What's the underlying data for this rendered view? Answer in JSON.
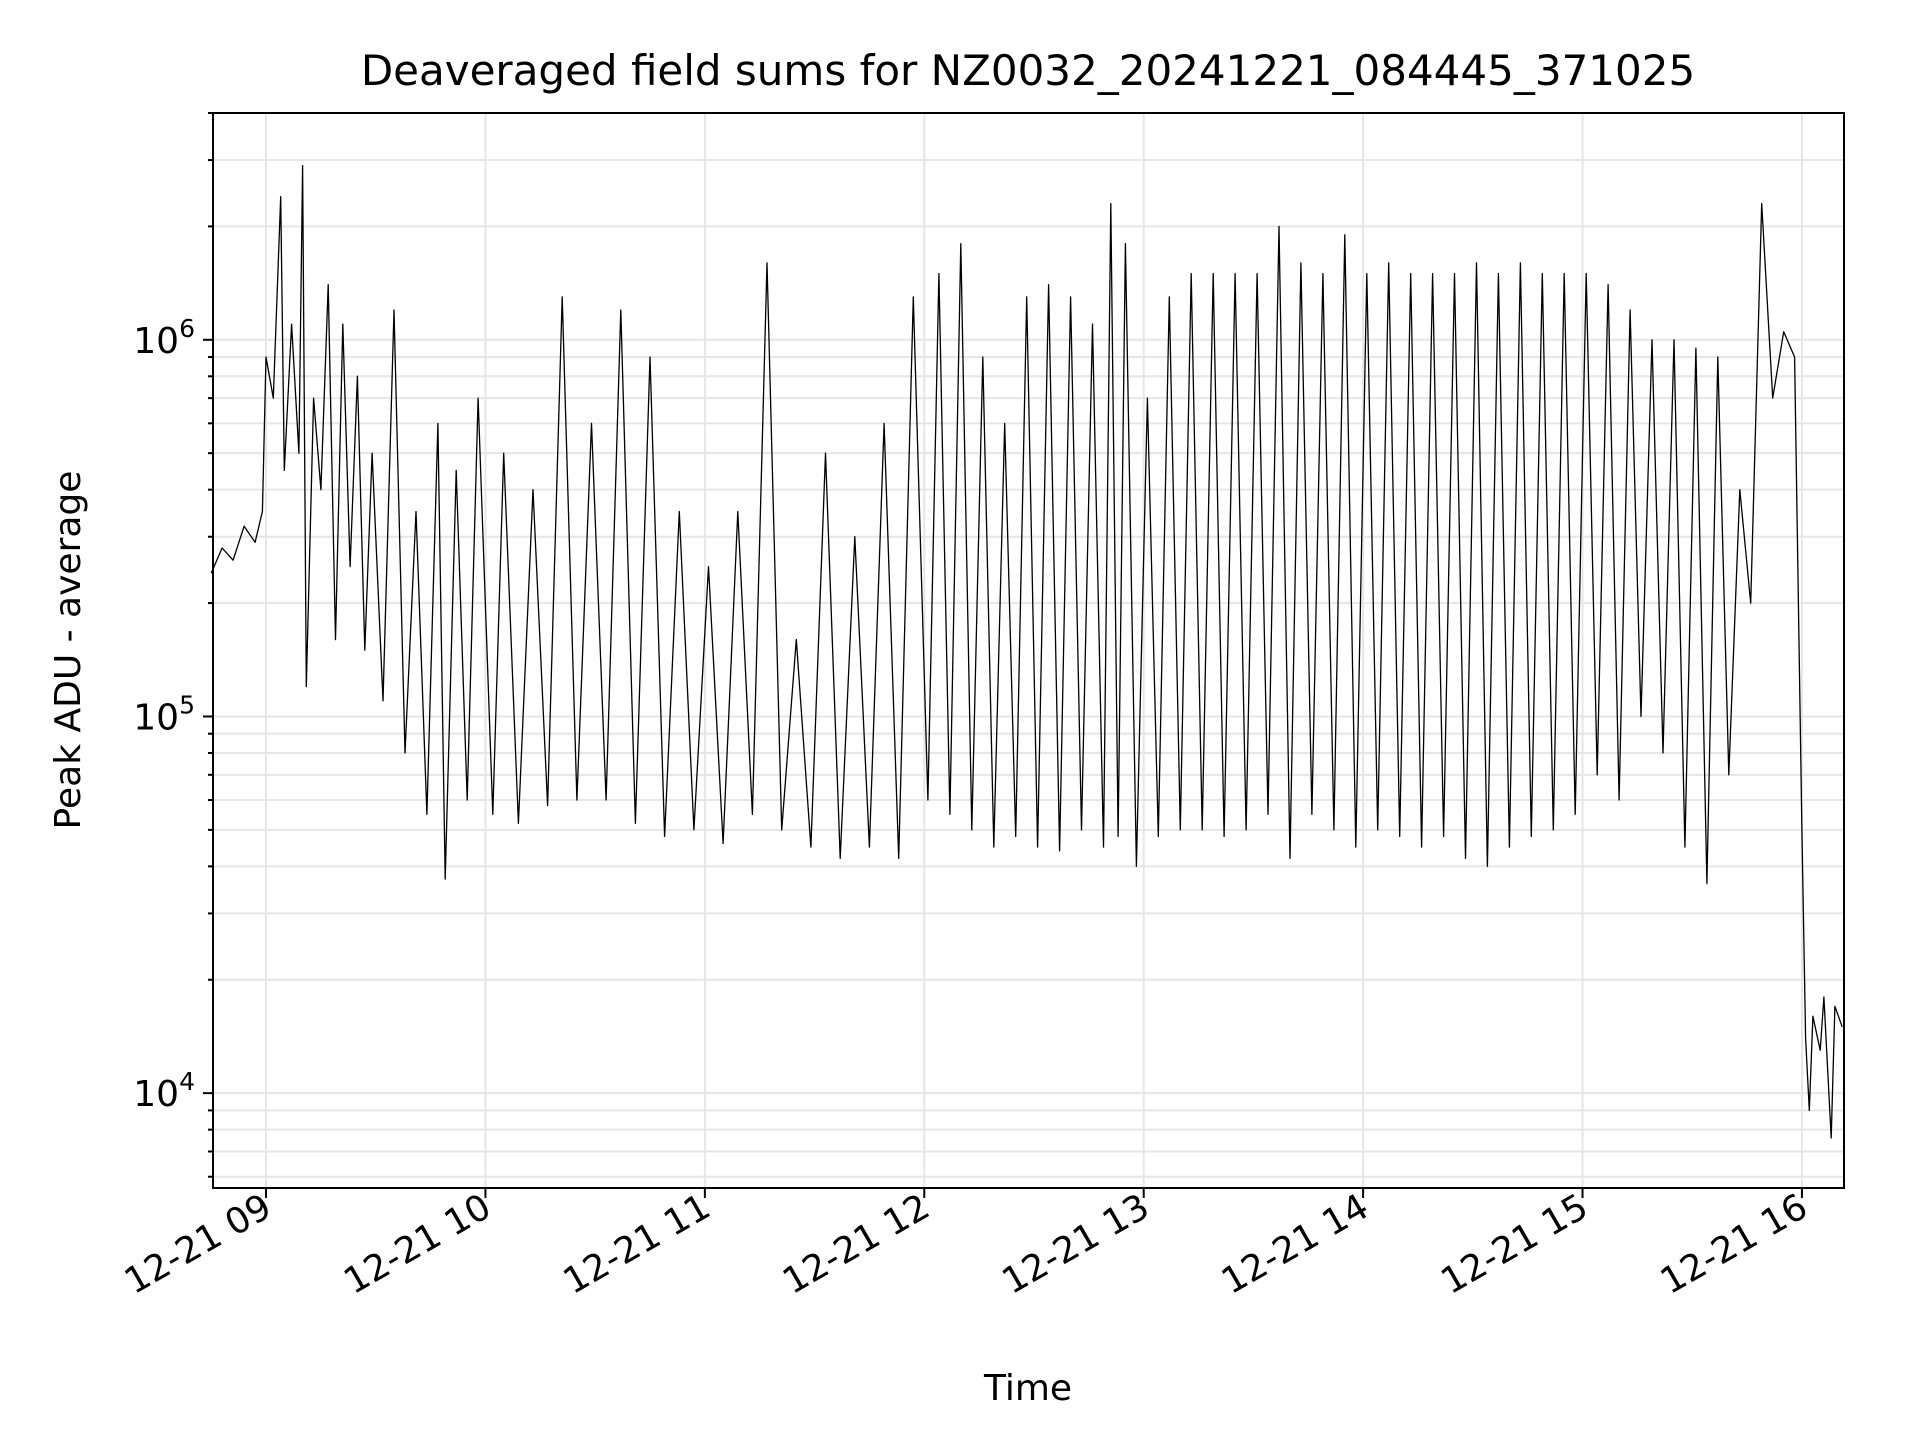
{
  "chart_data": {
    "type": "line",
    "title": "Deaveraged field sums for NZ0032_20241221_084445_371025",
    "xlabel": "Time",
    "ylabel": "Peak ADU - average",
    "yscale": "log",
    "ylim": [
      5600,
      4000000
    ],
    "xlim": [
      "12-21 08:45:30",
      "12-21 16:11:30"
    ],
    "x_tick_labels": [
      "12-21 09",
      "12-21 10",
      "12-21 11",
      "12-21 12",
      "12-21 13",
      "12-21 14",
      "12-21 15",
      "12-21 16"
    ],
    "y_tick_labels": [
      {
        "base": "10",
        "exp": "4"
      },
      {
        "base": "10",
        "exp": "5"
      },
      {
        "base": "10",
        "exp": "6"
      }
    ],
    "grid": true,
    "legend": "none",
    "series_color": "#000000",
    "series": [
      {
        "points": [
          [
            "12-21 08:45",
            240000
          ],
          [
            "12-21 08:48",
            280000
          ],
          [
            "12-21 08:51",
            260000
          ],
          [
            "12-21 08:54",
            320000
          ],
          [
            "12-21 08:57",
            290000
          ],
          [
            "12-21 08:59",
            350000
          ],
          [
            "12-21 09:00",
            900000
          ],
          [
            "12-21 09:02",
            700000
          ],
          [
            "12-21 09:04",
            2400000
          ],
          [
            "12-21 09:05",
            450000
          ],
          [
            "12-21 09:07",
            1100000
          ],
          [
            "12-21 09:09",
            500000
          ],
          [
            "12-21 09:10",
            2900000
          ],
          [
            "12-21 09:11",
            120000
          ],
          [
            "12-21 09:13",
            700000
          ],
          [
            "12-21 09:15",
            400000
          ],
          [
            "12-21 09:17",
            1400000
          ],
          [
            "12-21 09:19",
            160000
          ],
          [
            "12-21 09:21",
            1100000
          ],
          [
            "12-21 09:23",
            250000
          ],
          [
            "12-21 09:25",
            800000
          ],
          [
            "12-21 09:27",
            150000
          ],
          [
            "12-21 09:29",
            500000
          ],
          [
            "12-21 09:32",
            110000
          ],
          [
            "12-21 09:35",
            1200000
          ],
          [
            "12-21 09:38",
            80000
          ],
          [
            "12-21 09:41",
            350000
          ],
          [
            "12-21 09:44",
            55000
          ],
          [
            "12-21 09:47",
            600000
          ],
          [
            "12-21 09:49",
            37000
          ],
          [
            "12-21 09:52",
            450000
          ],
          [
            "12-21 09:55",
            60000
          ],
          [
            "12-21 09:58",
            700000
          ],
          [
            "12-21 10:02",
            55000
          ],
          [
            "12-21 10:05",
            500000
          ],
          [
            "12-21 10:09",
            52000
          ],
          [
            "12-21 10:13",
            400000
          ],
          [
            "12-21 10:17",
            58000
          ],
          [
            "12-21 10:21",
            1300000
          ],
          [
            "12-21 10:25",
            60000
          ],
          [
            "12-21 10:29",
            600000
          ],
          [
            "12-21 10:33",
            60000
          ],
          [
            "12-21 10:37",
            1200000
          ],
          [
            "12-21 10:41",
            52000
          ],
          [
            "12-21 10:45",
            900000
          ],
          [
            "12-21 10:49",
            48000
          ],
          [
            "12-21 10:53",
            350000
          ],
          [
            "12-21 10:57",
            50000
          ],
          [
            "12-21 11:01",
            250000
          ],
          [
            "12-21 11:05",
            46000
          ],
          [
            "12-21 11:09",
            350000
          ],
          [
            "12-21 11:13",
            55000
          ],
          [
            "12-21 11:17",
            1600000
          ],
          [
            "12-21 11:21",
            50000
          ],
          [
            "12-21 11:25",
            160000
          ],
          [
            "12-21 11:29",
            45000
          ],
          [
            "12-21 11:33",
            500000
          ],
          [
            "12-21 11:37",
            42000
          ],
          [
            "12-21 11:41",
            300000
          ],
          [
            "12-21 11:45",
            45000
          ],
          [
            "12-21 11:49",
            600000
          ],
          [
            "12-21 11:53",
            42000
          ],
          [
            "12-21 11:57",
            1300000
          ],
          [
            "12-21 12:01",
            60000
          ],
          [
            "12-21 12:04",
            1500000
          ],
          [
            "12-21 12:07",
            55000
          ],
          [
            "12-21 12:10",
            1800000
          ],
          [
            "12-21 12:13",
            50000
          ],
          [
            "12-21 12:16",
            900000
          ],
          [
            "12-21 12:19",
            45000
          ],
          [
            "12-21 12:22",
            600000
          ],
          [
            "12-21 12:25",
            48000
          ],
          [
            "12-21 12:28",
            1300000
          ],
          [
            "12-21 12:31",
            45000
          ],
          [
            "12-21 12:34",
            1400000
          ],
          [
            "12-21 12:37",
            44000
          ],
          [
            "12-21 12:40",
            1300000
          ],
          [
            "12-21 12:43",
            50000
          ],
          [
            "12-21 12:46",
            1100000
          ],
          [
            "12-21 12:49",
            45000
          ],
          [
            "12-21 12:51",
            2300000
          ],
          [
            "12-21 12:53",
            48000
          ],
          [
            "12-21 12:55",
            1800000
          ],
          [
            "12-21 12:58",
            40000
          ],
          [
            "12-21 13:01",
            700000
          ],
          [
            "12-21 13:04",
            48000
          ],
          [
            "12-21 13:07",
            1300000
          ],
          [
            "12-21 13:10",
            50000
          ],
          [
            "12-21 13:13",
            1500000
          ],
          [
            "12-21 13:16",
            50000
          ],
          [
            "12-21 13:19",
            1500000
          ],
          [
            "12-21 13:22",
            48000
          ],
          [
            "12-21 13:25",
            1500000
          ],
          [
            "12-21 13:28",
            50000
          ],
          [
            "12-21 13:31",
            1500000
          ],
          [
            "12-21 13:34",
            55000
          ],
          [
            "12-21 13:37",
            2000000
          ],
          [
            "12-21 13:40",
            42000
          ],
          [
            "12-21 13:43",
            1600000
          ],
          [
            "12-21 13:46",
            55000
          ],
          [
            "12-21 13:49",
            1500000
          ],
          [
            "12-21 13:52",
            50000
          ],
          [
            "12-21 13:55",
            1900000
          ],
          [
            "12-21 13:58",
            45000
          ],
          [
            "12-21 14:01",
            1500000
          ],
          [
            "12-21 14:04",
            50000
          ],
          [
            "12-21 14:07",
            1600000
          ],
          [
            "12-21 14:10",
            48000
          ],
          [
            "12-21 14:13",
            1500000
          ],
          [
            "12-21 14:16",
            45000
          ],
          [
            "12-21 14:19",
            1500000
          ],
          [
            "12-21 14:22",
            48000
          ],
          [
            "12-21 14:25",
            1500000
          ],
          [
            "12-21 14:28",
            42000
          ],
          [
            "12-21 14:31",
            1600000
          ],
          [
            "12-21 14:34",
            40000
          ],
          [
            "12-21 14:37",
            1500000
          ],
          [
            "12-21 14:40",
            45000
          ],
          [
            "12-21 14:43",
            1600000
          ],
          [
            "12-21 14:46",
            48000
          ],
          [
            "12-21 14:49",
            1500000
          ],
          [
            "12-21 14:52",
            50000
          ],
          [
            "12-21 14:55",
            1500000
          ],
          [
            "12-21 14:58",
            55000
          ],
          [
            "12-21 15:01",
            1500000
          ],
          [
            "12-21 15:04",
            70000
          ],
          [
            "12-21 15:07",
            1400000
          ],
          [
            "12-21 15:10",
            60000
          ],
          [
            "12-21 15:13",
            1200000
          ],
          [
            "12-21 15:16",
            100000
          ],
          [
            "12-21 15:19",
            1000000
          ],
          [
            "12-21 15:22",
            80000
          ],
          [
            "12-21 15:25",
            1000000
          ],
          [
            "12-21 15:28",
            45000
          ],
          [
            "12-21 15:31",
            950000
          ],
          [
            "12-21 15:34",
            36000
          ],
          [
            "12-21 15:37",
            900000
          ],
          [
            "12-21 15:40",
            70000
          ],
          [
            "12-21 15:43",
            400000
          ],
          [
            "12-21 15:46",
            200000
          ],
          [
            "12-21 15:49",
            2300000
          ],
          [
            "12-21 15:52",
            700000
          ],
          [
            "12-21 15:55",
            1050000
          ],
          [
            "12-21 15:58",
            900000
          ],
          [
            "12-21 16:00",
            50000
          ],
          [
            "12-21 16:01",
            14000
          ],
          [
            "12-21 16:02",
            9000
          ],
          [
            "12-21 16:03",
            16000
          ],
          [
            "12-21 16:05",
            13000
          ],
          [
            "12-21 16:06",
            18000
          ],
          [
            "12-21 16:08",
            7600
          ],
          [
            "12-21 16:09",
            17000
          ],
          [
            "12-21 16:11",
            15000
          ]
        ]
      }
    ]
  }
}
